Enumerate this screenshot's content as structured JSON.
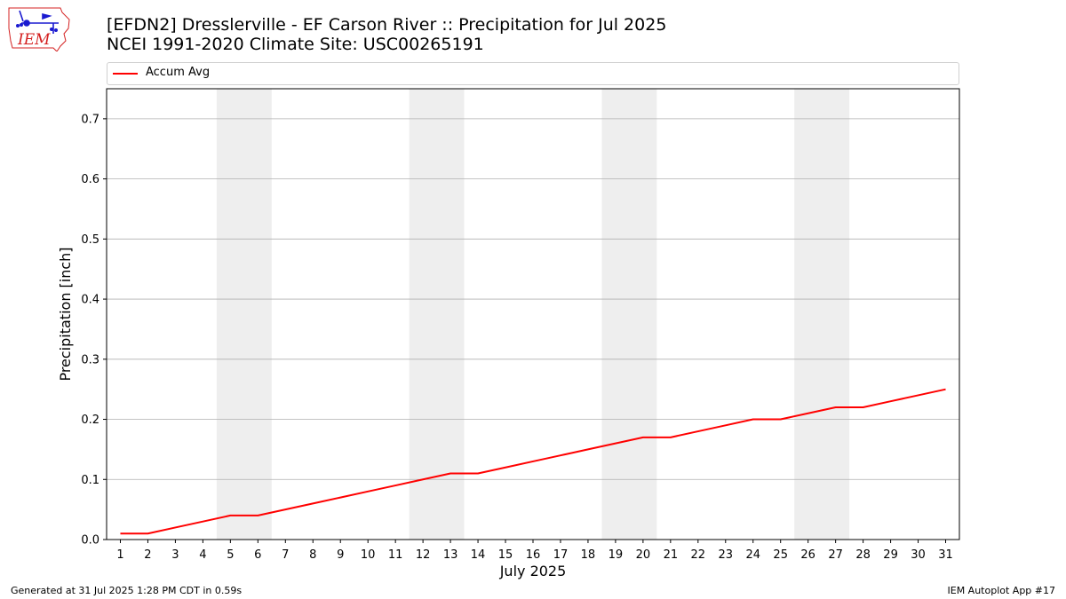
{
  "header": {
    "title_line1": "[EFDN2] Dresslerville - EF Carson River :: Precipitation for Jul 2025",
    "title_line2": "NCEI 1991-2020 Climate Site: USC00265191",
    "logo_text": "IEM"
  },
  "footer": {
    "generated": "Generated at 31 Jul 2025 1:28 PM CDT in 0.59s",
    "app": "IEM Autoplot App #17"
  },
  "colors": {
    "series": "#ff0000",
    "weekend_band": "#eeeeee",
    "grid": "#b0b0b0",
    "logo": "#1a1ad0",
    "logo_text": "#d42020"
  },
  "chart_data": {
    "type": "line",
    "title": "[EFDN2] Dresslerville - EF Carson River :: Precipitation for Jul 2025",
    "subtitle": "NCEI 1991-2020 Climate Site: USC00265191",
    "xlabel": "July 2025",
    "ylabel": "Precipitation [inch]",
    "xlim": [
      0.5,
      31.5
    ],
    "ylim": [
      0,
      0.75
    ],
    "xticks": [
      1,
      2,
      3,
      4,
      5,
      6,
      7,
      8,
      9,
      10,
      11,
      12,
      13,
      14,
      15,
      16,
      17,
      18,
      19,
      20,
      21,
      22,
      23,
      24,
      25,
      26,
      27,
      28,
      29,
      30,
      31
    ],
    "yticks": [
      0.0,
      0.1,
      0.2,
      0.3,
      0.4,
      0.5,
      0.6,
      0.7
    ],
    "ytick_labels": [
      "0.0",
      "0.1",
      "0.2",
      "0.3",
      "0.4",
      "0.5",
      "0.6",
      "0.7"
    ],
    "grid": "horizontal",
    "legend_position": "top",
    "weekend_bands": [
      [
        4.5,
        6.5
      ],
      [
        11.5,
        13.5
      ],
      [
        18.5,
        20.5
      ],
      [
        25.5,
        27.5
      ]
    ],
    "series": [
      {
        "name": "Accum Avg",
        "color": "#ff0000",
        "x": [
          1,
          2,
          3,
          4,
          5,
          6,
          7,
          8,
          9,
          10,
          11,
          12,
          13,
          14,
          15,
          16,
          17,
          18,
          19,
          20,
          21,
          22,
          23,
          24,
          25,
          26,
          27,
          28,
          29,
          30,
          31
        ],
        "values": [
          0.01,
          0.01,
          0.02,
          0.03,
          0.04,
          0.04,
          0.05,
          0.06,
          0.07,
          0.08,
          0.09,
          0.1,
          0.11,
          0.11,
          0.12,
          0.13,
          0.14,
          0.15,
          0.16,
          0.17,
          0.17,
          0.18,
          0.19,
          0.2,
          0.2,
          0.21,
          0.22,
          0.22,
          0.23,
          0.24,
          0.25
        ]
      }
    ]
  }
}
